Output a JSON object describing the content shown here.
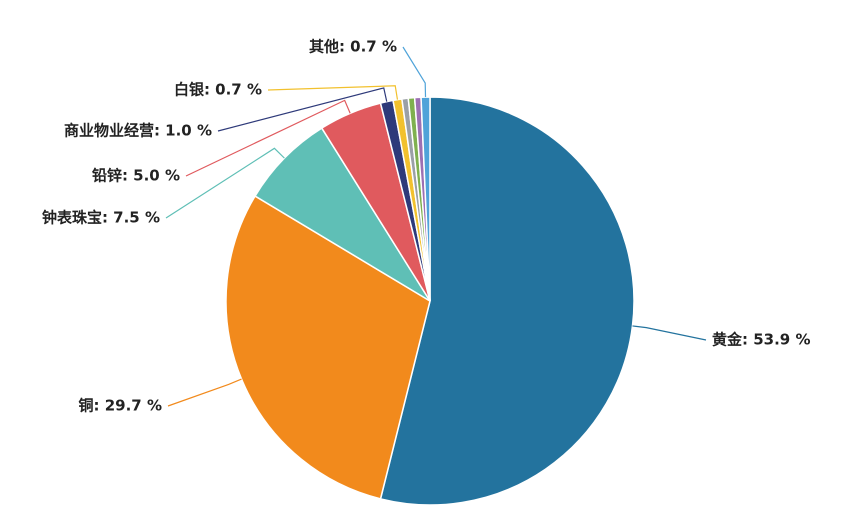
{
  "chart_data": {
    "type": "pie",
    "values": [
      53.9,
      29.7,
      7.5,
      5.0,
      1.0,
      0.7,
      0.5,
      0.5,
      0.5,
      0.7
    ],
    "value_labels": [
      "黄金: 53.9 %",
      "铜: 29.7 %",
      "钟表珠宝: 7.5 %",
      "铅锌: 5.0 %",
      "商业物业经营: 1.0 %",
      "白银: 0.7 %",
      null,
      null,
      null,
      "其他: 0.7 %"
    ],
    "colors": [
      "#23739e",
      "#f28a1c",
      "#5fbfb6",
      "#e05a5e",
      "#2e3a7a",
      "#f2c12e",
      "#9ba0a6",
      "#7fb04f",
      "#9c6fb3",
      "#4fa3d9"
    ]
  }
}
